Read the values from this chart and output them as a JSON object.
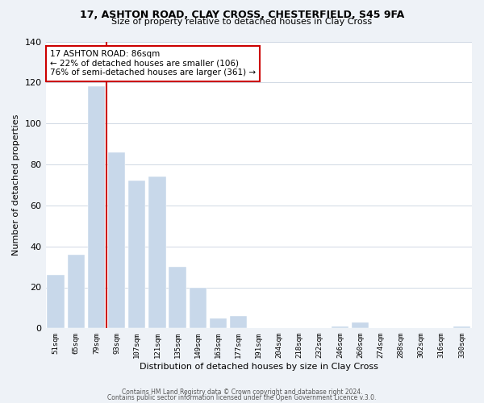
{
  "title": "17, ASHTON ROAD, CLAY CROSS, CHESTERFIELD, S45 9FA",
  "subtitle": "Size of property relative to detached houses in Clay Cross",
  "xlabel": "Distribution of detached houses by size in Clay Cross",
  "ylabel": "Number of detached properties",
  "bar_color": "#c8d8ea",
  "marker_color": "#cc0000",
  "annotation_line1": "17 ASHTON ROAD: 86sqm",
  "annotation_line2": "← 22% of detached houses are smaller (106)",
  "annotation_line3": "76% of semi-detached houses are larger (361) →",
  "footer1": "Contains HM Land Registry data © Crown copyright and database right 2024.",
  "footer2": "Contains public sector information licensed under the Open Government Licence v.3.0.",
  "categories": [
    "51sqm",
    "65sqm",
    "79sqm",
    "93sqm",
    "107sqm",
    "121sqm",
    "135sqm",
    "149sqm",
    "163sqm",
    "177sqm",
    "191sqm",
    "204sqm",
    "218sqm",
    "232sqm",
    "246sqm",
    "260sqm",
    "274sqm",
    "288sqm",
    "302sqm",
    "316sqm",
    "330sqm"
  ],
  "values": [
    26,
    36,
    118,
    86,
    72,
    74,
    30,
    20,
    5,
    6,
    0,
    0,
    0,
    0,
    1,
    3,
    0,
    0,
    0,
    0,
    1
  ],
  "marker_bar_index": 2,
  "ylim": [
    0,
    140
  ],
  "yticks": [
    0,
    20,
    40,
    60,
    80,
    100,
    120,
    140
  ],
  "bg_color": "#eef2f7",
  "plot_bg_color": "#ffffff",
  "annotation_box_color": "#ffffff",
  "annotation_box_edge": "#cc0000",
  "grid_color": "#d0d8e4"
}
